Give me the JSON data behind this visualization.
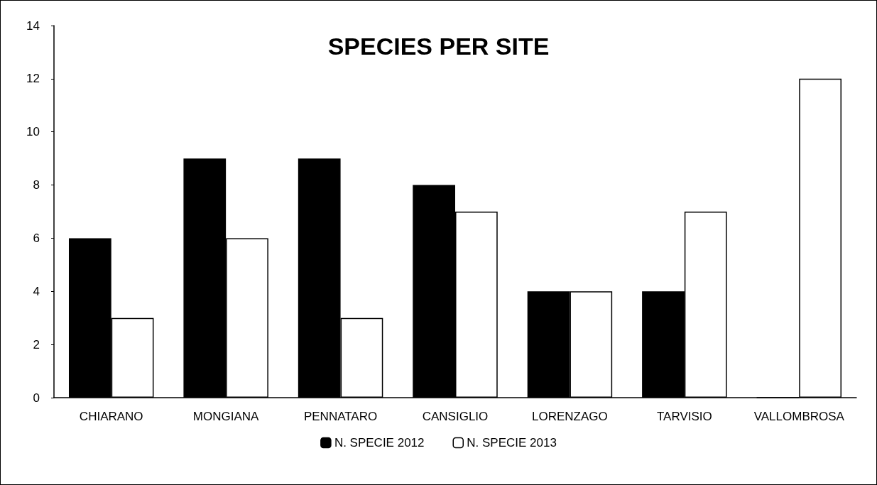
{
  "chart_data": {
    "type": "bar",
    "title": "SPECIES PER SITE",
    "categories": [
      "CHIARANO",
      "MONGIANA",
      "PENNATARO",
      "CANSIGLIO",
      "LORENZAGO",
      "TARVISIO",
      "VALLOMBROSA"
    ],
    "series": [
      {
        "name": "N. SPECIE 2012",
        "color": "#000000",
        "values": [
          6,
          9,
          9,
          8,
          4,
          4,
          0
        ]
      },
      {
        "name": "N. SPECIE 2013",
        "color": "#ffffff",
        "values": [
          3,
          6,
          3,
          7,
          4,
          7,
          12
        ]
      }
    ],
    "ylim": [
      0,
      14
    ],
    "yticks": [
      0,
      2,
      4,
      6,
      8,
      10,
      12,
      14
    ],
    "grid": false,
    "legend": "bottom"
  }
}
